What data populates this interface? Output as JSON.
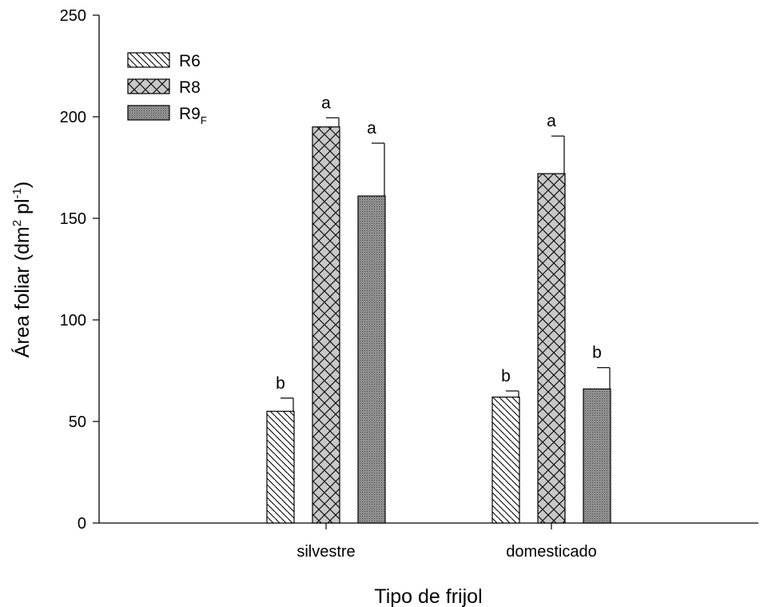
{
  "chart_data": {
    "type": "bar",
    "xlabel": "Tipo de frijol",
    "ylabel": {
      "base": "Área foliar (dm",
      "exp1": "2",
      "mid": " pl",
      "exp2": "-1",
      "end": ")"
    },
    "ylim": [
      0,
      250
    ],
    "yticks": [
      0,
      50,
      100,
      150,
      200,
      250
    ],
    "categories": [
      "silvestre",
      "domesticado"
    ],
    "legend_position": "top-left",
    "series": [
      {
        "name": "R6",
        "pattern": "diagonal-hatch",
        "values": [
          55,
          62
        ],
        "errors": [
          6.5,
          3
        ],
        "letters": [
          "b",
          "b"
        ]
      },
      {
        "name": "R8",
        "pattern": "crosshatch-gray",
        "values": [
          195,
          172
        ],
        "errors": [
          4.5,
          18.5
        ],
        "letters": [
          "a",
          "a"
        ]
      },
      {
        "name": "R9",
        "name_subscript": "F",
        "pattern": "dotted-dark",
        "values": [
          161,
          66
        ],
        "errors": [
          26,
          10.5
        ],
        "letters": [
          "a",
          "b"
        ]
      }
    ]
  }
}
